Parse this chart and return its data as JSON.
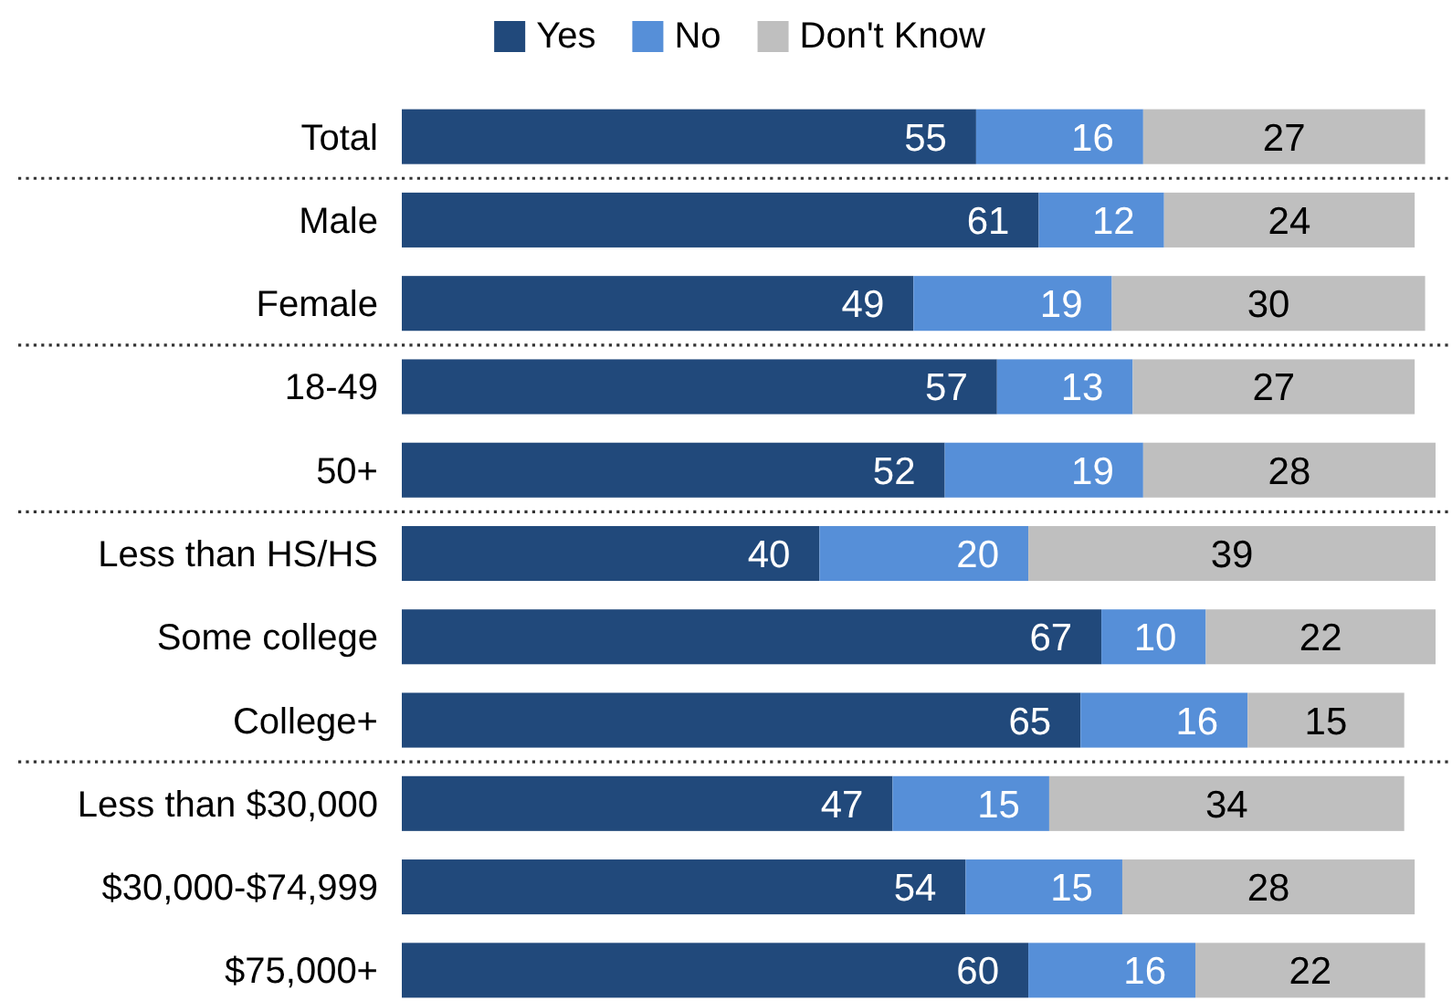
{
  "chart_data": {
    "type": "bar",
    "orientation": "horizontal",
    "stacked": true,
    "categories": [
      "Total",
      "Male",
      "Female",
      "18-49",
      "50+",
      "Less than HS/HS",
      "Some college",
      "College+",
      "Less than $30,000",
      "$30,000-$74,999",
      "$75,000+"
    ],
    "series": [
      {
        "name": "Yes",
        "color": "#21497b",
        "values": [
          55,
          61,
          49,
          57,
          52,
          40,
          67,
          65,
          47,
          54,
          60
        ]
      },
      {
        "name": "No",
        "color": "#568fd8",
        "values": [
          16,
          12,
          19,
          13,
          19,
          20,
          10,
          16,
          15,
          15,
          16
        ]
      },
      {
        "name": "Don't Know",
        "color": "#bfbfbf",
        "values": [
          27,
          24,
          30,
          27,
          28,
          39,
          22,
          15,
          34,
          28,
          22
        ]
      }
    ],
    "data_labels": true,
    "legend": "top"
  }
}
